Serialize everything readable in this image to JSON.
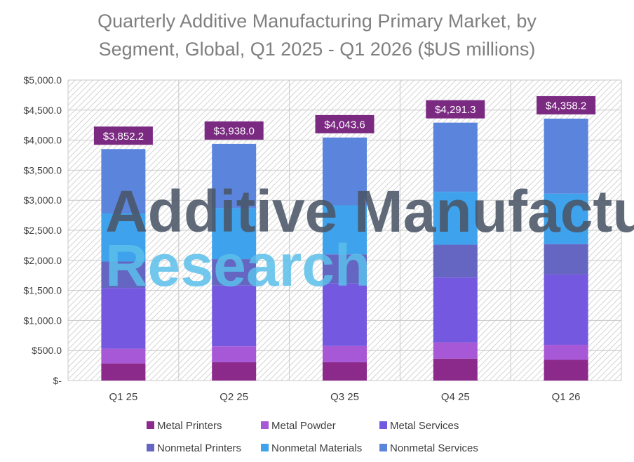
{
  "title_line1": "Quarterly Additive Manufacturing Primary Market, by",
  "title_line2": "Segment, Global, Q1 2025 - Q1 2026 ($US millions)",
  "watermark": {
    "line1": "Additive Manufacturing",
    "line2": "Research"
  },
  "colors": {
    "total_label_bg": "#7b2a82",
    "grid": "#c9c9c9",
    "hatch": "#d6d6d6"
  },
  "chart_data": {
    "type": "bar",
    "stacked": true,
    "title": "Quarterly Additive Manufacturing Primary Market, by Segment, Global, Q1 2025 - Q1 2026 ($US millions)",
    "categories": [
      "Q1 25",
      "Q2 25",
      "Q3 25",
      "Q4 25",
      "Q1 26"
    ],
    "ylim": [
      0,
      5000
    ],
    "yticks": [
      0,
      500,
      1000,
      1500,
      2000,
      2500,
      3000,
      3500,
      4000,
      4500,
      5000
    ],
    "ytick_labels": [
      "$-",
      "$500.0",
      "$1,000.0",
      "$1,500.0",
      "$2,000.0",
      "$2,500.0",
      "$3,000.0",
      "$3,500.0",
      "$4,000.0",
      "$4,500.0",
      "$5,000.0"
    ],
    "totals": [
      "$3,852.2",
      "$3,938.0",
      "$4,043.6",
      "$4,291.3",
      "$4,358.2"
    ],
    "legend_position": "bottom",
    "grid": true,
    "series": [
      {
        "name": "Metal Printers",
        "color": "#8c2a8c",
        "values": [
          285,
          305,
          305,
          365,
          345
        ]
      },
      {
        "name": "Metal Powder",
        "color": "#a758d6",
        "values": [
          245,
          265,
          270,
          270,
          250
        ]
      },
      {
        "name": "Metal Services",
        "color": "#7558e0",
        "values": [
          1010,
          1010,
          1040,
          1080,
          1170
        ]
      },
      {
        "name": "Nonmetal Printers",
        "color": "#6565c2",
        "values": [
          440,
          440,
          485,
          545,
          505
        ]
      },
      {
        "name": "Nonmetal Materials",
        "color": "#3fa2ec",
        "values": [
          800,
          850,
          815,
          880,
          840
        ]
      },
      {
        "name": "Nonmetal Services",
        "color": "#5b85dc",
        "values": [
          1072.2,
          1068,
          1128.6,
          1151.3,
          1248.2
        ]
      }
    ]
  }
}
